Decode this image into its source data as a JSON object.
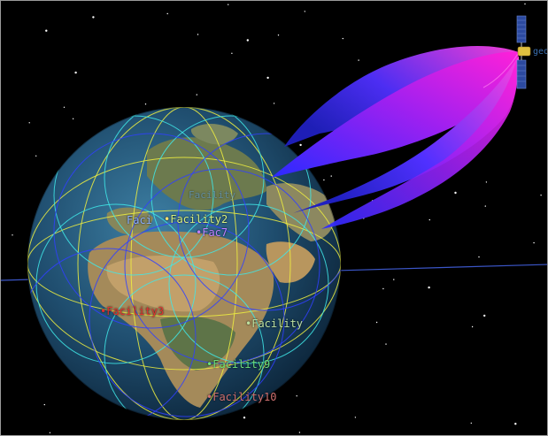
{
  "facilities": [
    {
      "id": "fac1",
      "label": "Faci",
      "color": "#8ab0ff"
    },
    {
      "id": "fac2",
      "label": "Facility2",
      "color": "#d8f080"
    },
    {
      "id": "fac7",
      "label": "Fac7",
      "color": "#c080ff"
    },
    {
      "id": "fac3",
      "label": "Facility3",
      "color": "#e03030"
    },
    {
      "id": "fac5",
      "label": "Facility",
      "color": "#bde0a0"
    },
    {
      "id": "fac9",
      "label": "Facility9",
      "color": "#6ce07a"
    },
    {
      "id": "fac10",
      "label": "Facility10",
      "color": "#d07070"
    },
    {
      "id": "fac-top",
      "label": "Facility",
      "color": "#5a9ee0"
    }
  ],
  "satellite": {
    "label": "geo"
  },
  "colors": {
    "space": "#000000",
    "orbit_line": "#3b56c8",
    "cone_start": "#ff20d8",
    "cone_end": "#3030ff",
    "grid_yellow": "#f0f040",
    "grid_cyan": "#40e8e8",
    "grid_blue": "#3040ff"
  }
}
